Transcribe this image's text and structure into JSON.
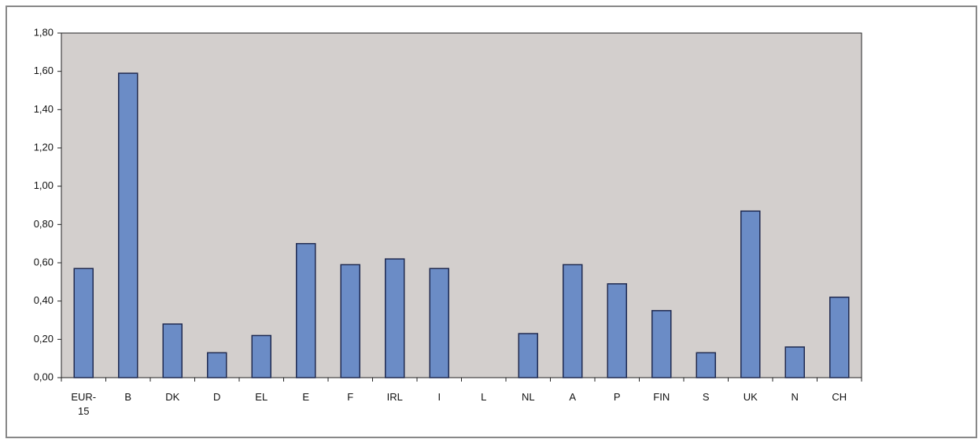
{
  "chart_data": {
    "type": "bar",
    "categories": [
      "EUR-15",
      "B",
      "DK",
      "D",
      "EL",
      "E",
      "F",
      "IRL",
      "I",
      "L",
      "NL",
      "A",
      "P",
      "FIN",
      "S",
      "UK",
      "N",
      "CH"
    ],
    "values": [
      0.57,
      1.59,
      0.28,
      0.13,
      0.22,
      0.7,
      0.59,
      0.62,
      0.57,
      null,
      0.23,
      0.59,
      0.49,
      0.35,
      0.13,
      0.87,
      0.16,
      0.42
    ],
    "color": "#6b8cc6",
    "ylim": [
      0,
      1.8
    ],
    "yticks": [
      {
        "value": 0,
        "label": "0,00"
      },
      {
        "value": 0.2,
        "label": "0,20"
      },
      {
        "value": 0.4,
        "label": "0,40"
      },
      {
        "value": 0.6,
        "label": "0,60"
      },
      {
        "value": 0.8,
        "label": "0,80"
      },
      {
        "value": 1.0,
        "label": "1,00"
      },
      {
        "value": 1.2,
        "label": "1,20"
      },
      {
        "value": 1.4,
        "label": "1,40"
      },
      {
        "value": 1.6,
        "label": "1,60"
      },
      {
        "value": 1.8,
        "label": "1,80"
      }
    ],
    "grid": false
  }
}
